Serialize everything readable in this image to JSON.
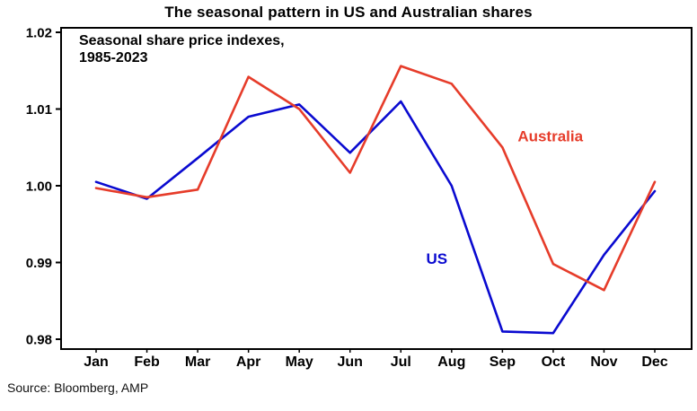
{
  "title": "The seasonal pattern in US and Australian shares",
  "annotation": {
    "line1": "Seasonal share price indexes,",
    "line2": "1985-2023"
  },
  "source": "Source: Bloomberg, AMP",
  "chart_data": {
    "type": "line",
    "title": "The seasonal pattern in US and Australian shares",
    "categories": [
      "Jan",
      "Feb",
      "Mar",
      "Apr",
      "May",
      "Jun",
      "Jul",
      "Aug",
      "Sep",
      "Oct",
      "Nov",
      "Dec"
    ],
    "series": [
      {
        "name": "US",
        "color": "#0a0ad0",
        "values": [
          1.0005,
          0.9983,
          1.0036,
          1.009,
          1.0106,
          1.0043,
          1.011,
          1.0,
          0.981,
          0.9808,
          0.991,
          0.9993
        ]
      },
      {
        "name": "Australia",
        "color": "#e63c2a",
        "values": [
          0.9997,
          0.9985,
          0.9995,
          1.0142,
          1.01,
          1.0017,
          1.0156,
          1.0133,
          1.005,
          0.9898,
          0.9864,
          1.0005
        ]
      }
    ],
    "ylim": [
      0.98,
      1.02
    ],
    "yticks": [
      0.98,
      0.99,
      1.0,
      1.01,
      1.02
    ],
    "grid": false,
    "legend_position": "inline-annotations",
    "series_labels": [
      {
        "text": "Australia",
        "color": "#e63c2a",
        "x_month": 8.3,
        "value": 1.0065
      },
      {
        "text": "US",
        "color": "#0a0ad0",
        "x_month": 6.5,
        "value": 0.9905
      }
    ]
  }
}
